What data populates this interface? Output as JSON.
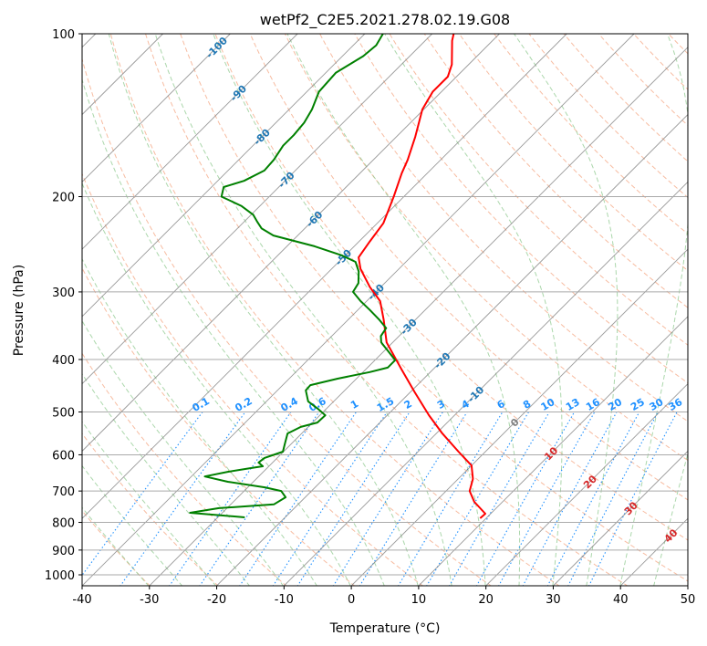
{
  "chart_data": {
    "type": "line",
    "subtype": "skew-t log-p",
    "title": "wetPf2_C2E5.2021.278.02.19.G08",
    "xlabel": "Temperature (°C)",
    "ylabel": "Pressure (hPa)",
    "xlim": [
      -40,
      50
    ],
    "ylim": [
      1050,
      100
    ],
    "x_ticks": [
      -40,
      -30,
      -20,
      -10,
      0,
      10,
      20,
      30,
      40,
      50
    ],
    "y_ticks": [
      100,
      200,
      300,
      400,
      500,
      600,
      700,
      800,
      900,
      1000
    ],
    "grid": true,
    "series": [
      {
        "name": "Temperature",
        "color": "#ff0000",
        "pressure_hpa": [
          786,
          771,
          733,
          700,
          665,
          628,
          592,
          548,
          507,
          460,
          417,
          372,
          337,
          312,
          294,
          272,
          259,
          242,
          224,
          200,
          181,
          171,
          155,
          138,
          128,
          120,
          114,
          103,
          100
        ],
        "temperature_c": [
          9.1,
          9.2,
          5.8,
          3.5,
          2.2,
          0.0,
          -4.0,
          -9.1,
          -13.8,
          -19.3,
          -24.7,
          -30.9,
          -34.8,
          -38.0,
          -41.6,
          -45.7,
          -47.7,
          -48.4,
          -49.1,
          -51.5,
          -53.8,
          -54.9,
          -57.2,
          -60.2,
          -61.3,
          -61.3,
          -62.5,
          -66.0,
          -66.8
        ]
      },
      {
        "name": "Dewpoint",
        "color": "#008000",
        "pressure_hpa": [
          783,
          768,
          753,
          741,
          719,
          700,
          689,
          673,
          658,
          645,
          635,
          630,
          620,
          608,
          592,
          574,
          548,
          533,
          523,
          507,
          493,
          478,
          456,
          446,
          434,
          422,
          414,
          401,
          386,
          372,
          362,
          350,
          337,
          324,
          312,
          300,
          289,
          275,
          264,
          257,
          247,
          236,
          229,
          222,
          216,
          208,
          200,
          192,
          187,
          179,
          171,
          161,
          154,
          146,
          138,
          128,
          118,
          110,
          105,
          100
        ],
        "temperature_c": [
          -26.0,
          -34.8,
          -31.2,
          -23.6,
          -22.9,
          -24.5,
          -27.5,
          -33.8,
          -38.0,
          -35.3,
          -32.4,
          -30.9,
          -32.1,
          -31.9,
          -30.1,
          -30.9,
          -32.1,
          -31.1,
          -29.3,
          -29.2,
          -31.3,
          -33.8,
          -35.8,
          -35.9,
          -32.8,
          -29.0,
          -27.0,
          -27.0,
          -29.4,
          -31.7,
          -32.7,
          -33.1,
          -35.5,
          -38.2,
          -40.9,
          -43.4,
          -43.9,
          -45.6,
          -47.5,
          -50.4,
          -55.9,
          -63.6,
          -66.4,
          -68.2,
          -69.7,
          -72.8,
          -77.1,
          -78.2,
          -76.1,
          -74.6,
          -74.8,
          -75.5,
          -75.5,
          -75.8,
          -76.6,
          -78.2,
          -78.5,
          -76.9,
          -76.6,
          -77.3
        ]
      }
    ],
    "isotherm_labels": [
      "-100",
      "-90",
      "-80",
      "-70",
      "-60",
      "-50",
      "-40",
      "-30",
      "-20",
      "-10",
      "0",
      "10",
      "20",
      "30",
      "40"
    ],
    "isotherm_label_values": [
      -100,
      -90,
      -80,
      -70,
      -60,
      -50,
      -40,
      -30,
      -20,
      -10,
      0,
      10,
      20,
      30,
      40
    ],
    "mixing_ratio_labels": [
      "0.1",
      "0.2",
      "0.4",
      "0.6",
      "1",
      "1.5",
      "2",
      "3",
      "4",
      "6",
      "8",
      "10",
      "13",
      "16",
      "20",
      "25",
      "30",
      "36"
    ],
    "mixing_ratio_values_gkg": [
      0.1,
      0.2,
      0.4,
      0.6,
      1,
      1.5,
      2,
      3,
      4,
      6,
      8,
      10,
      13,
      16,
      20,
      25,
      30,
      36
    ],
    "colors": {
      "isotherm": "#808080",
      "dry_adiabat": "#f4a582",
      "moist_adiabat": "#8fc98f",
      "mixing_ratio": "#1e90ff",
      "label_negative": "#1f77b4",
      "label_zero": "#808080",
      "label_positive": "#d62728"
    }
  }
}
